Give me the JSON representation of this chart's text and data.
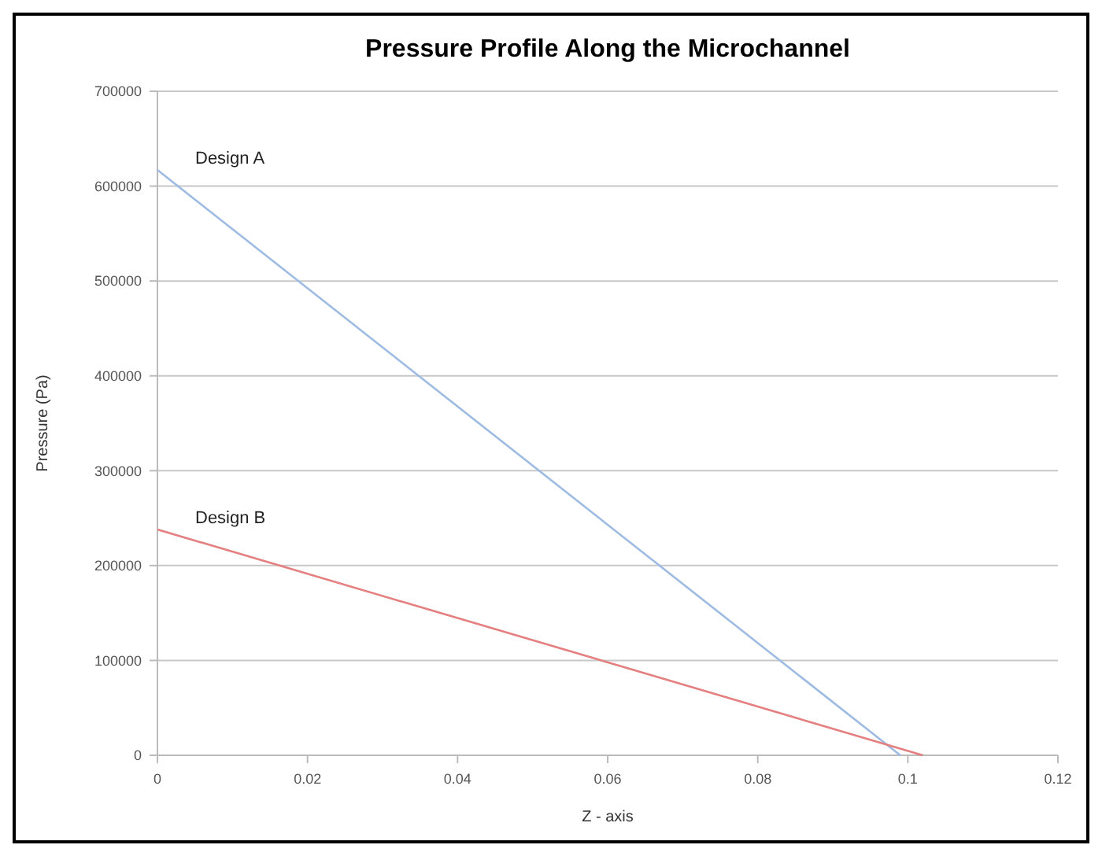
{
  "chart_data": {
    "type": "line",
    "title": "Pressure Profile Along the Microchannel",
    "xlabel": "Z - axis",
    "ylabel": "Pressure (Pa)",
    "xlim": [
      0,
      0.12
    ],
    "xticks": [
      0,
      0.02,
      0.04,
      0.06,
      0.08,
      0.1,
      0.12
    ],
    "ylim": [
      0,
      700000
    ],
    "yticks": [
      0,
      100000,
      200000,
      300000,
      400000,
      500000,
      600000,
      700000
    ],
    "grid": "y",
    "marker": "none",
    "line_style": "solid",
    "series": [
      {
        "name": "Design A",
        "color": "#9dbbe3",
        "x": [
          0,
          0.099
        ],
        "values": [
          617000,
          0
        ]
      },
      {
        "name": "Design B",
        "color": "#e58080",
        "x": [
          0,
          0.102
        ],
        "values": [
          238000,
          0
        ]
      }
    ]
  }
}
